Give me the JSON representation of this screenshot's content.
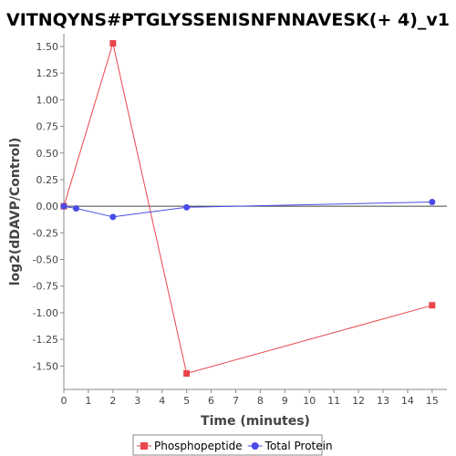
{
  "chart_data": {
    "type": "line",
    "title": "VITNQYNS#PTGLYSSENISNFNNAVESK(+ 4)_v1",
    "xlabel": "Time (minutes)",
    "ylabel": "log2(dDAVP/Control)",
    "xlim": [
      0,
      15.6
    ],
    "ylim": [
      -1.72,
      1.62
    ],
    "xticks": [
      0,
      1,
      2,
      3,
      4,
      5,
      6,
      7,
      8,
      9,
      10,
      11,
      12,
      13,
      14,
      15
    ],
    "xtick_labels": [
      "0",
      "1",
      "2",
      "3",
      "4",
      "5",
      "6",
      "7",
      "8",
      "9",
      "10",
      "11",
      "12",
      "13",
      "14",
      "15"
    ],
    "yticks": [
      1.5,
      1.25,
      1.0,
      0.75,
      0.5,
      0.25,
      0.0,
      -0.25,
      -0.5,
      -0.75,
      -1.0,
      -1.25,
      -1.5
    ],
    "ytick_labels": [
      "1.50",
      "1.25",
      "1.00",
      "0.75",
      "0.50",
      "0.25",
      "0.00",
      "-0.25",
      "-0.50",
      "-0.75",
      "-1.00",
      "-1.25",
      "-1.50"
    ],
    "grid": false,
    "legend_position": "bottom",
    "series": [
      {
        "name": "Phosphopeptide",
        "color": "#e8474b",
        "marker": "square",
        "x": [
          0,
          2,
          5,
          15
        ],
        "y": [
          0.0,
          1.53,
          -1.57,
          -0.93
        ]
      },
      {
        "name": "Total Protein",
        "color": "#4a4ae8",
        "marker": "circle",
        "x": [
          0,
          0.5,
          2,
          5,
          15
        ],
        "y": [
          0.0,
          -0.02,
          -0.1,
          -0.01,
          0.04
        ]
      }
    ]
  }
}
